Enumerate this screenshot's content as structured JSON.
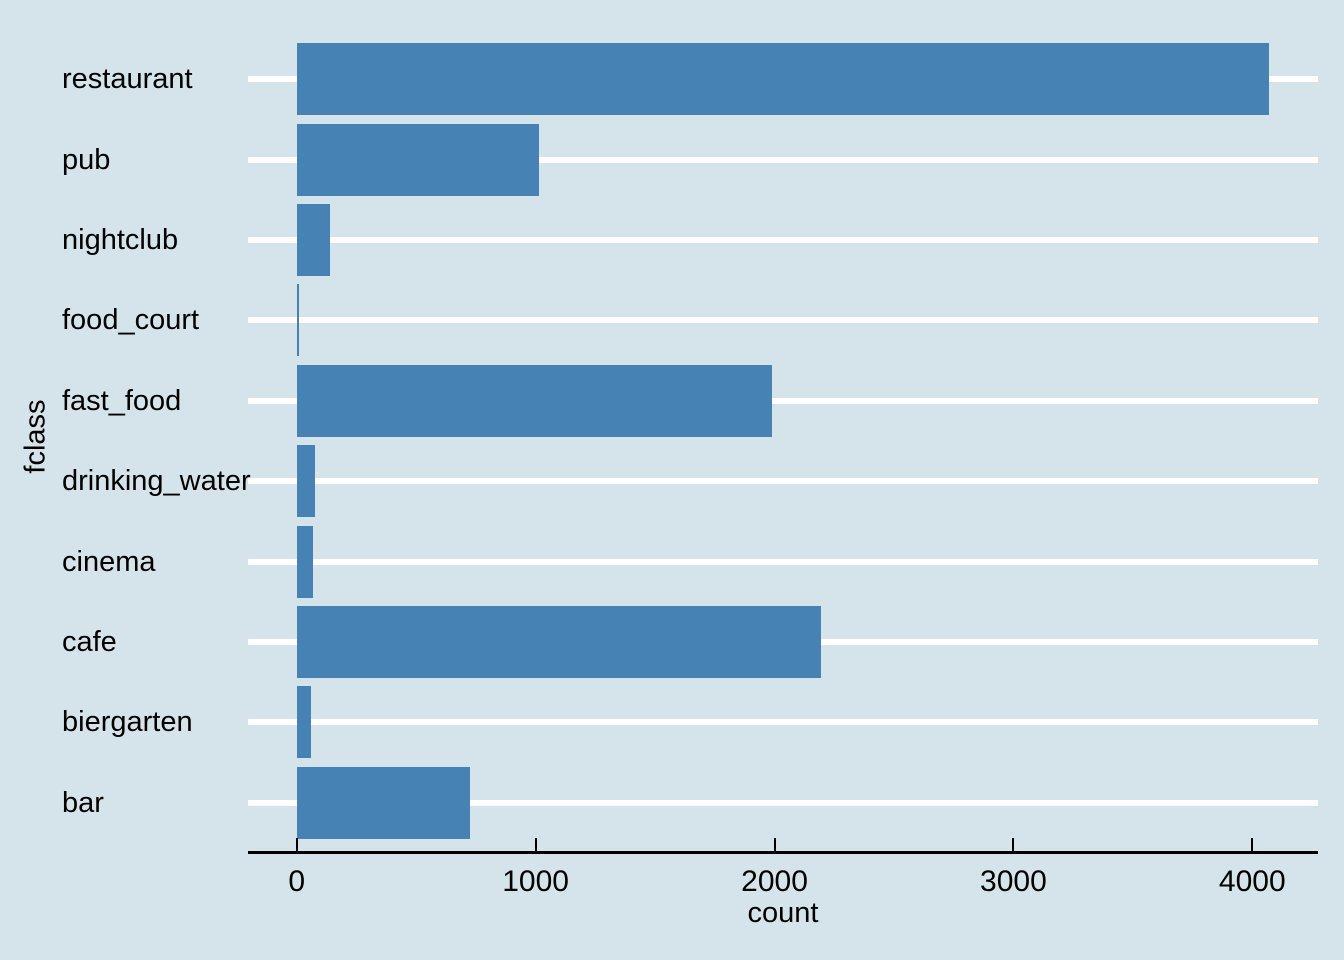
{
  "figure": {
    "background_color": "#d5e4eb",
    "bar_color": "#4682b4",
    "gridline_color": "#ffffff",
    "axis_color": "#000000",
    "text_color": "#000000"
  },
  "chart_data": {
    "type": "bar",
    "orientation": "horizontal",
    "title": "",
    "xlabel": "count",
    "ylabel": "fclass",
    "categories": [
      "restaurant",
      "pub",
      "nightclub",
      "food_court",
      "fast_food",
      "drinking_water",
      "cinema",
      "cafe",
      "biergarten",
      "bar"
    ],
    "values": [
      4070,
      1015,
      140,
      5,
      1990,
      75,
      70,
      2195,
      60,
      725
    ],
    "x_ticks": [
      0,
      1000,
      2000,
      3000,
      4000
    ],
    "x_tick_labels": [
      "0",
      "1000",
      "2000",
      "3000",
      "4000"
    ],
    "xlim": [
      -204,
      4275
    ],
    "grid": "horizontal white major lines on category rows",
    "legend": "none",
    "style": "economist-theme, inward black axis ticks, left-aligned category labels"
  }
}
